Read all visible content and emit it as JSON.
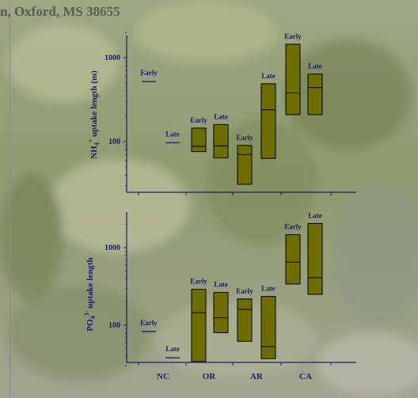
{
  "header": {
    "text": "n, Oxford, MS 38655"
  },
  "colors": {
    "box_fill": "#6e6e00",
    "ink": "#1a1e66",
    "header": "#5a5a5a"
  },
  "chart_data": [
    {
      "type": "box",
      "ylabel_main": "NH",
      "ylabel_sub": "4",
      "ylabel_sup": "+",
      "ylabel_rest": " uptake length (m)",
      "yscale": "log",
      "ylim": [
        28,
        2000
      ],
      "yticks": [
        {
          "label": "100",
          "value": 100
        },
        {
          "label": "1000",
          "value": 1000
        }
      ],
      "categories": [
        "NC",
        "OR",
        "AR",
        "CA"
      ],
      "show_categories": false,
      "series": [
        {
          "label": "Early",
          "cat": 0,
          "slot": 0,
          "median": 520
        },
        {
          "label": "Late",
          "cat": 0,
          "slot": 1,
          "median": 97
        },
        {
          "label": "Early",
          "cat": 1,
          "slot": 0,
          "low": 76,
          "median": 88,
          "high": 145
        },
        {
          "label": "Late",
          "cat": 1,
          "slot": 1,
          "low": 64,
          "median": 89,
          "high": 160
        },
        {
          "label": "Early",
          "cat": 2,
          "slot": 0,
          "low": 31,
          "median": 70,
          "high": 90
        },
        {
          "label": "Late",
          "cat": 2,
          "slot": 1,
          "low": 63,
          "median": 240,
          "high": 490
        },
        {
          "label": "Early",
          "cat": 3,
          "slot": 0,
          "low": 210,
          "median": 380,
          "high": 1450
        },
        {
          "label": "Late",
          "cat": 3,
          "slot": 1,
          "low": 210,
          "median": 440,
          "high": 640
        }
      ]
    },
    {
      "type": "box",
      "ylabel_main": "PO",
      "ylabel_sub": "4",
      "ylabel_sup": "3-",
      "ylabel_rest": " uptake length",
      "yscale": "log",
      "ylim": [
        28,
        2000
      ],
      "yticks": [
        {
          "label": "100",
          "value": 100
        },
        {
          "label": "1000",
          "value": 1000
        }
      ],
      "categories": [
        "NC",
        "OR",
        "AR",
        "CA"
      ],
      "show_categories": true,
      "series": [
        {
          "label": "Early",
          "cat": 0,
          "slot": 0,
          "median": 83
        },
        {
          "label": "Late",
          "cat": 0,
          "slot": 1,
          "median": 38
        },
        {
          "label": "Early",
          "cat": 1,
          "slot": 0,
          "low": 34,
          "median": 145,
          "high": 290
        },
        {
          "label": "Late",
          "cat": 1,
          "slot": 1,
          "low": 80,
          "median": 125,
          "high": 265
        },
        {
          "label": "Early",
          "cat": 2,
          "slot": 0,
          "low": 62,
          "median": 160,
          "high": 218
        },
        {
          "label": "Late",
          "cat": 2,
          "slot": 1,
          "low": 37,
          "median": 53,
          "high": 235
        },
        {
          "label": "Early",
          "cat": 3,
          "slot": 0,
          "low": 340,
          "median": 650,
          "high": 1470
        },
        {
          "label": "Late",
          "cat": 3,
          "slot": 1,
          "low": 250,
          "median": 410,
          "high": 2050
        }
      ]
    }
  ]
}
